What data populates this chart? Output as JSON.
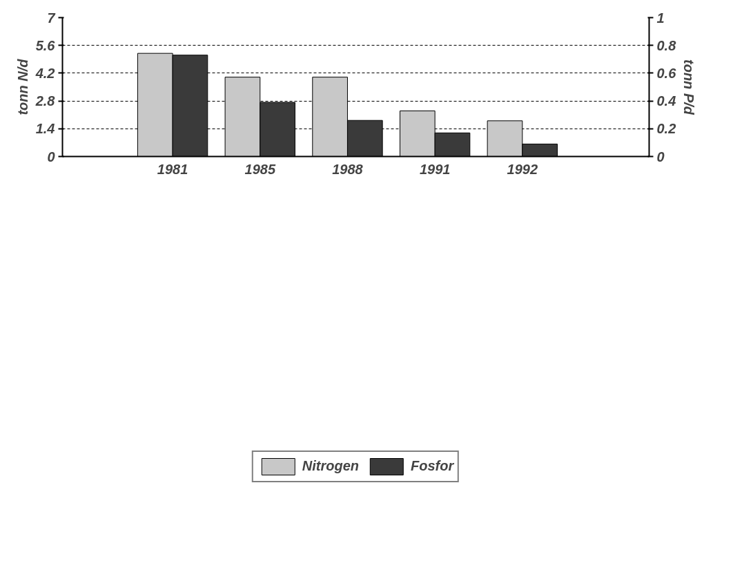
{
  "chart_data": {
    "type": "bar",
    "categories": [
      "1981",
      "1985",
      "1988",
      "1991",
      "1992"
    ],
    "ylabel": "tonn N/d",
    "y2label": "tonn P/d",
    "series": [
      {
        "name": "Nitrogen",
        "color": "#c8c8c8",
        "values": [
          5.2,
          4.0,
          4.0,
          2.3,
          1.8
        ]
      },
      {
        "name": "Fosfor",
        "color": "#3a3a3a",
        "axis": "y2",
        "values": [
          0.73,
          0.39,
          0.26,
          0.17,
          0.09
        ]
      }
    ],
    "ylim": [
      0,
      7
    ],
    "yticks": [
      0,
      1.4,
      2.8,
      4.2,
      5.6,
      7
    ],
    "y2lim": [
      0,
      1
    ],
    "y2ticks": [
      0,
      0.2,
      0.4,
      0.6,
      0.8,
      1
    ],
    "grid": "y",
    "legend": "bottom"
  }
}
